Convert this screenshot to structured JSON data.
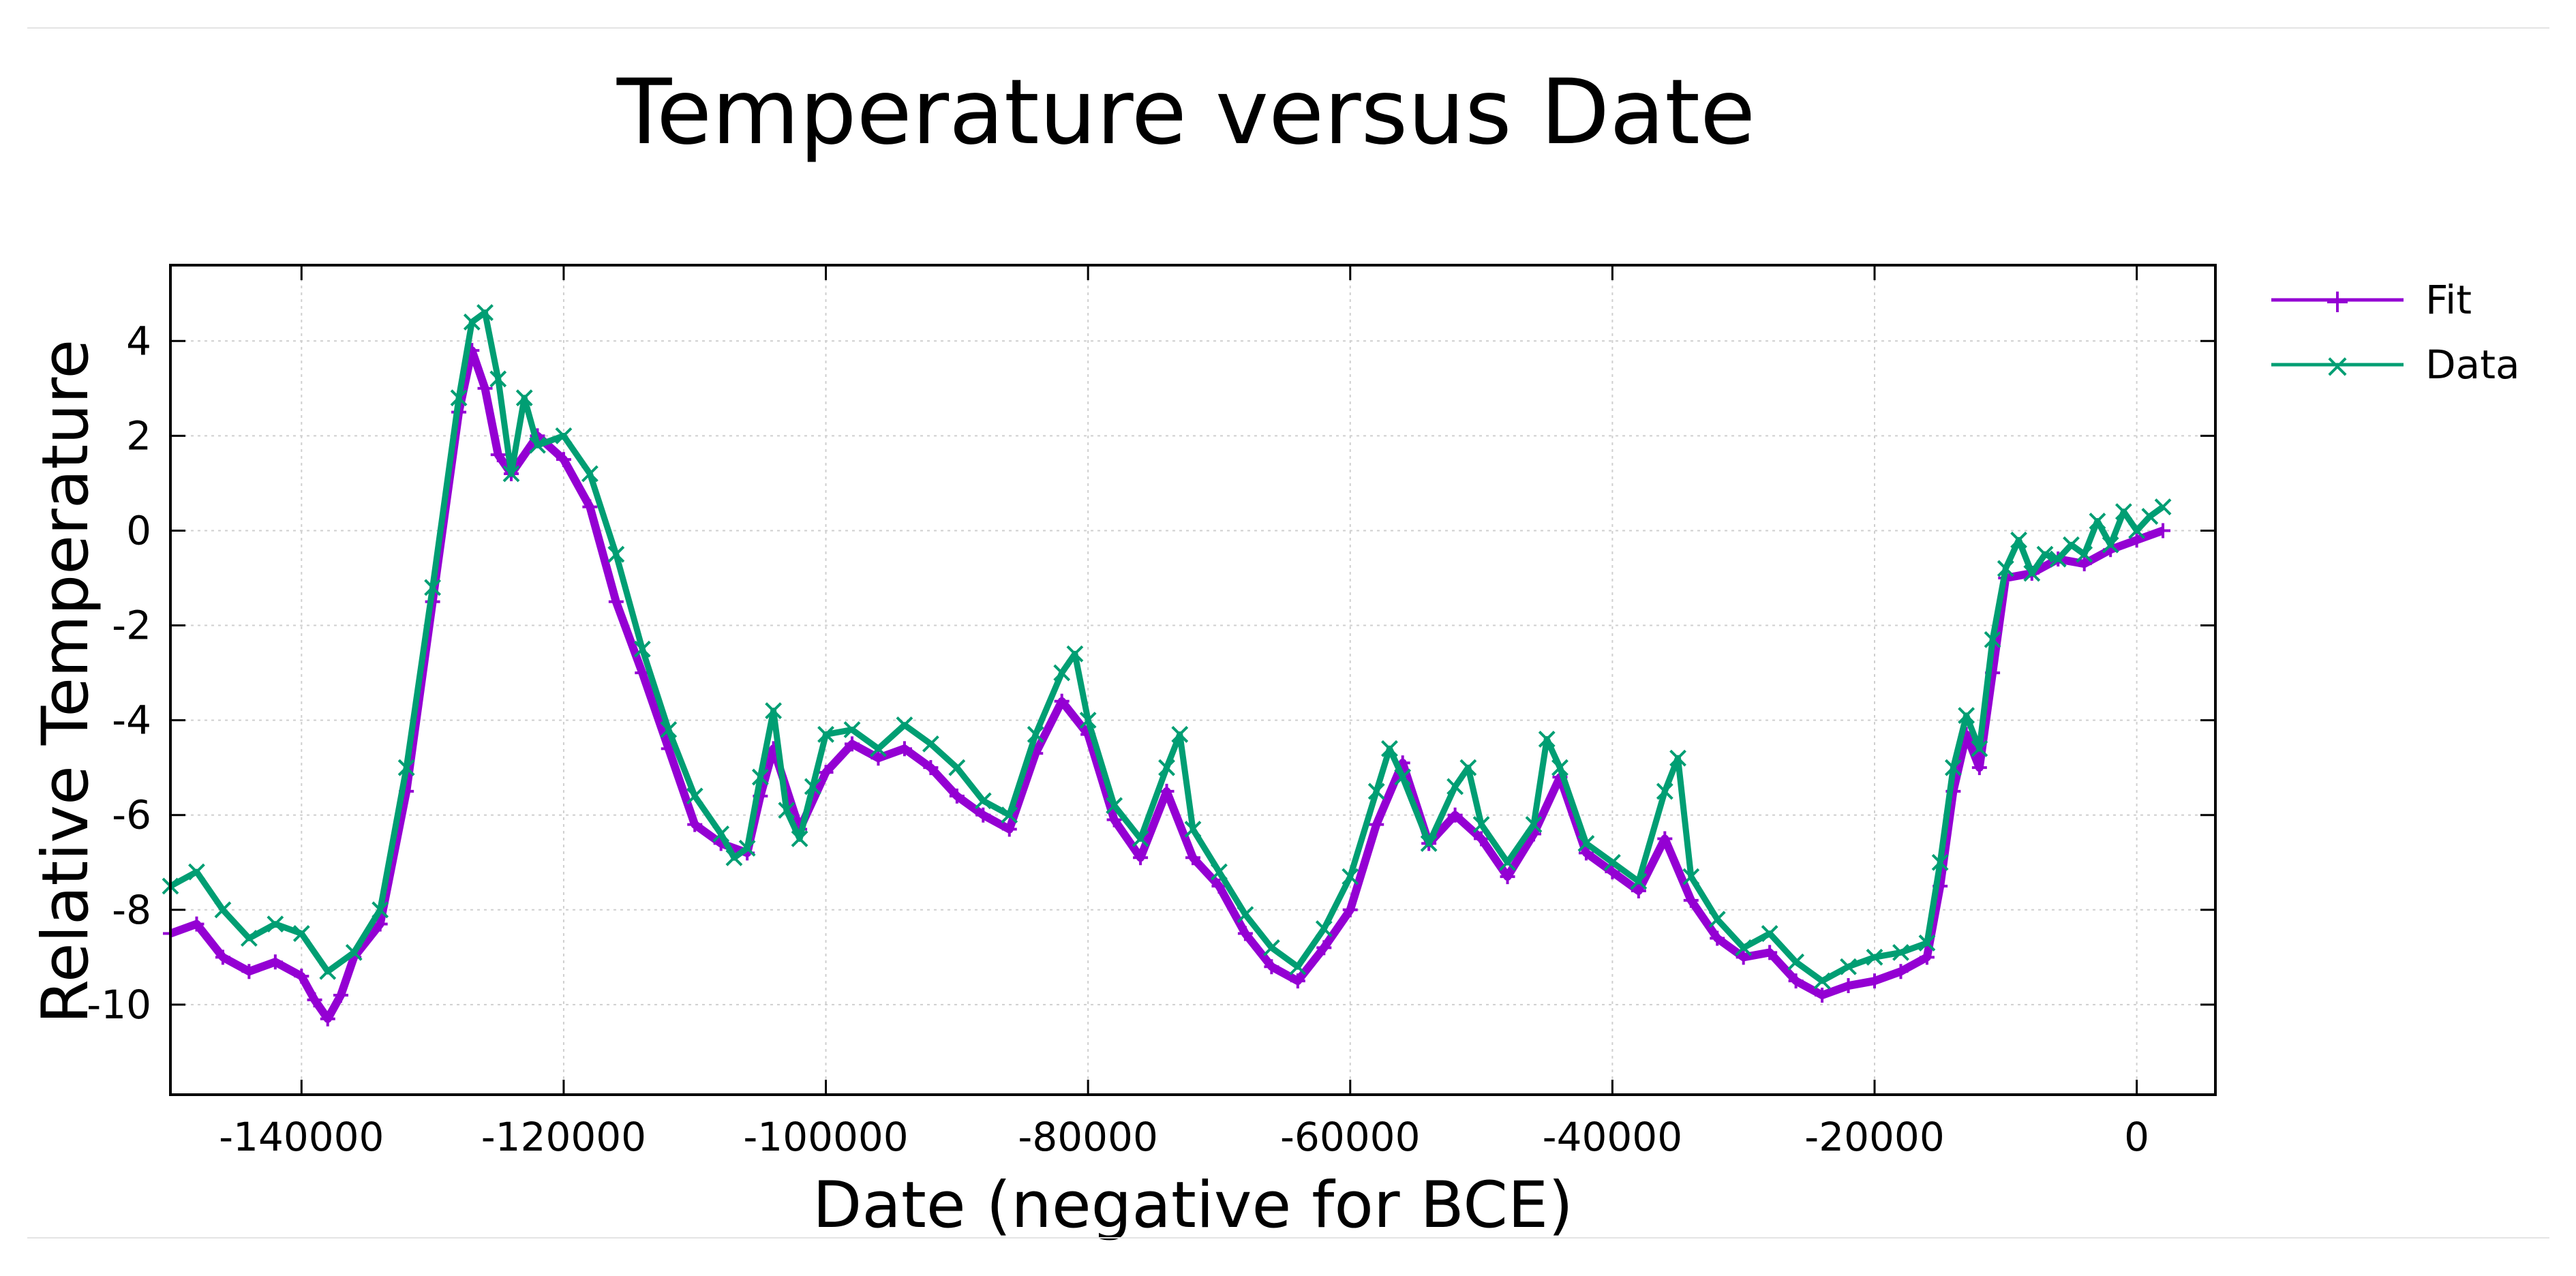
{
  "colors": {
    "fit": "#9400d3",
    "data": "#009e73",
    "axis": "#000000",
    "grid": "#cfcfcf"
  },
  "chart_data": {
    "type": "line",
    "title": "Temperature versus Date",
    "xlabel": "Date (negative for BCE)",
    "ylabel": "Relative Temperature",
    "xlim": [
      -150000,
      6000
    ],
    "ylim": [
      -11.9,
      5.6
    ],
    "xticks": [
      -140000,
      -120000,
      -100000,
      -80000,
      -60000,
      -40000,
      -20000,
      0
    ],
    "yticks": [
      4,
      2,
      0,
      -2,
      -4,
      -6,
      -8,
      -10
    ],
    "grid": true,
    "legend_position": "right-outside-top",
    "series": [
      {
        "name": "Fit",
        "marker": "+",
        "x": [
          -150000,
          -148000,
          -146000,
          -144000,
          -142000,
          -140000,
          -139000,
          -138000,
          -137000,
          -136000,
          -134000,
          -132000,
          -130000,
          -128000,
          -127000,
          -126000,
          -125000,
          -124000,
          -122000,
          -120000,
          -118000,
          -116000,
          -114000,
          -112000,
          -110000,
          -108000,
          -106000,
          -105000,
          -104000,
          -102000,
          -100000,
          -98000,
          -96000,
          -94000,
          -92000,
          -90000,
          -88000,
          -86000,
          -84000,
          -82000,
          -80000,
          -78000,
          -76000,
          -74000,
          -72000,
          -70000,
          -68000,
          -66000,
          -64000,
          -62000,
          -60000,
          -58000,
          -56000,
          -54000,
          -52000,
          -50000,
          -48000,
          -46000,
          -44000,
          -42000,
          -40000,
          -38000,
          -36000,
          -34000,
          -32000,
          -30000,
          -28000,
          -26000,
          -24000,
          -22000,
          -20000,
          -18000,
          -16000,
          -15000,
          -14000,
          -13000,
          -12000,
          -11000,
          -10000,
          -8000,
          -6000,
          -4000,
          -2000,
          0,
          2000
        ],
        "y": [
          -8.5,
          -8.3,
          -9.0,
          -9.3,
          -9.1,
          -9.4,
          -9.9,
          -10.3,
          -9.8,
          -9.0,
          -8.3,
          -5.5,
          -1.5,
          2.5,
          3.8,
          3.0,
          1.6,
          1.2,
          2.0,
          1.5,
          0.5,
          -1.5,
          -3.0,
          -4.6,
          -6.2,
          -6.6,
          -6.8,
          -5.6,
          -4.6,
          -6.3,
          -5.1,
          -4.5,
          -4.8,
          -4.6,
          -5.0,
          -5.6,
          -6.0,
          -6.3,
          -4.7,
          -3.6,
          -4.3,
          -6.1,
          -6.9,
          -5.5,
          -6.9,
          -7.5,
          -8.5,
          -9.2,
          -9.5,
          -8.8,
          -8.0,
          -6.2,
          -4.9,
          -6.6,
          -6.0,
          -6.5,
          -7.3,
          -6.4,
          -5.2,
          -6.8,
          -7.2,
          -7.6,
          -6.5,
          -7.8,
          -8.6,
          -9.0,
          -8.9,
          -9.5,
          -9.8,
          -9.6,
          -9.5,
          -9.3,
          -9.0,
          -7.5,
          -5.5,
          -4.3,
          -5.0,
          -3.0,
          -1.0,
          -0.9,
          -0.6,
          -0.7,
          -0.4,
          -0.2,
          0.0
        ]
      },
      {
        "name": "Data",
        "marker": "x",
        "x": [
          -150000,
          -148000,
          -146000,
          -144000,
          -142000,
          -140000,
          -138000,
          -136000,
          -134000,
          -132000,
          -130000,
          -128000,
          -127000,
          -126000,
          -125000,
          -124000,
          -123000,
          -122000,
          -120000,
          -118000,
          -116000,
          -114000,
          -112000,
          -110000,
          -108000,
          -107000,
          -106000,
          -105000,
          -104000,
          -103000,
          -102000,
          -101000,
          -100000,
          -98000,
          -96000,
          -94000,
          -92000,
          -90000,
          -88000,
          -86000,
          -84000,
          -82000,
          -81000,
          -80000,
          -78000,
          -76000,
          -74000,
          -73000,
          -72000,
          -70000,
          -68000,
          -66000,
          -64000,
          -62000,
          -60000,
          -58000,
          -57000,
          -56000,
          -54000,
          -52000,
          -51000,
          -50000,
          -48000,
          -46000,
          -45000,
          -44000,
          -42000,
          -40000,
          -38000,
          -36000,
          -35000,
          -34000,
          -32000,
          -30000,
          -28000,
          -26000,
          -24000,
          -22000,
          -20000,
          -18000,
          -16000,
          -15000,
          -14000,
          -13000,
          -12000,
          -11000,
          -10000,
          -9000,
          -8000,
          -7000,
          -6000,
          -5000,
          -4000,
          -3000,
          -2000,
          -1000,
          0,
          1000,
          2000
        ],
        "y": [
          -7.5,
          -7.2,
          -8.0,
          -8.6,
          -8.3,
          -8.5,
          -9.3,
          -8.9,
          -8.0,
          -5.0,
          -1.2,
          2.8,
          4.4,
          4.6,
          3.2,
          1.2,
          2.8,
          1.8,
          2.0,
          1.2,
          -0.5,
          -2.5,
          -4.2,
          -5.6,
          -6.4,
          -6.9,
          -6.7,
          -5.2,
          -3.8,
          -5.9,
          -6.5,
          -5.4,
          -4.3,
          -4.2,
          -4.6,
          -4.1,
          -4.5,
          -5.0,
          -5.7,
          -6.0,
          -4.3,
          -3.0,
          -2.6,
          -4.0,
          -5.8,
          -6.5,
          -5.0,
          -4.3,
          -6.3,
          -7.2,
          -8.1,
          -8.8,
          -9.2,
          -8.4,
          -7.3,
          -5.5,
          -4.6,
          -5.2,
          -6.6,
          -5.4,
          -5.0,
          -6.2,
          -7.0,
          -6.2,
          -4.4,
          -5.0,
          -6.6,
          -7.0,
          -7.4,
          -5.5,
          -4.8,
          -7.3,
          -8.2,
          -8.8,
          -8.5,
          -9.1,
          -9.5,
          -9.2,
          -9.0,
          -8.9,
          -8.7,
          -7.0,
          -5.0,
          -3.9,
          -4.6,
          -2.3,
          -0.8,
          -0.2,
          -0.9,
          -0.5,
          -0.6,
          -0.3,
          -0.5,
          0.2,
          -0.3,
          0.4,
          0.0,
          0.3,
          0.5
        ]
      }
    ]
  }
}
